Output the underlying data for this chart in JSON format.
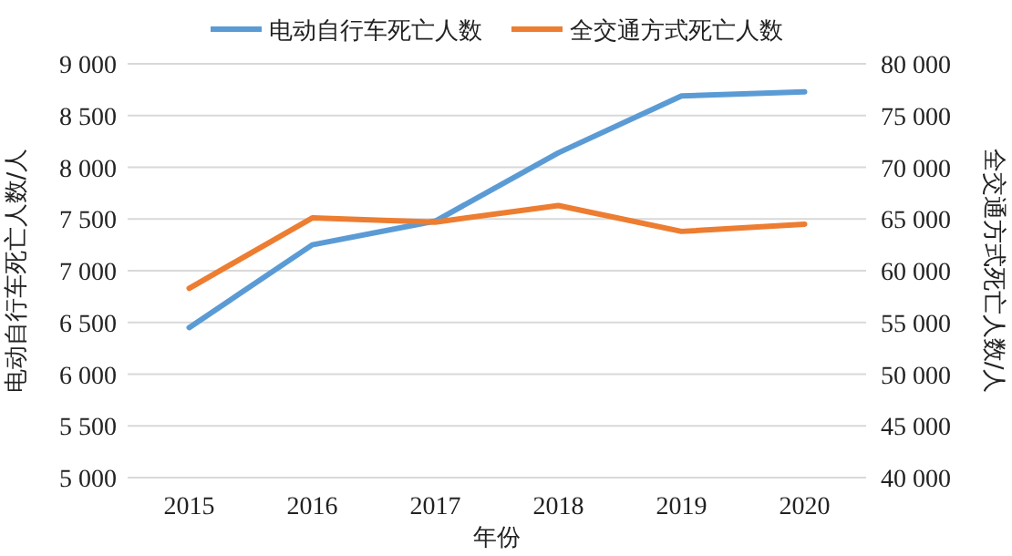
{
  "chart_data": {
    "type": "line",
    "categories": [
      "2015",
      "2016",
      "2017",
      "2018",
      "2019",
      "2020"
    ],
    "xlabel": "年份",
    "ylabel": "电动自行车死亡人数/人",
    "y2label": "全交通方式死亡人数/人",
    "series": [
      {
        "name": "电动自行车死亡人数",
        "color": "#5b9bd5",
        "values": [
          6450,
          7250,
          7480,
          8140,
          8690,
          8730
        ]
      },
      {
        "name": "全交通方式死亡人数",
        "color": "#ed7d31",
        "axis": "y2",
        "values": [
          58300,
          65100,
          64700,
          66300,
          63800,
          64500
        ]
      }
    ],
    "ylim": [
      5000,
      9000
    ],
    "yticks": [
      {
        "value": 5000,
        "label": "5 000"
      },
      {
        "value": 5500,
        "label": "5 500"
      },
      {
        "value": 6000,
        "label": "6 000"
      },
      {
        "value": 6500,
        "label": "6 500"
      },
      {
        "value": 7000,
        "label": "7 000"
      },
      {
        "value": 7500,
        "label": "7 500"
      },
      {
        "value": 8000,
        "label": "8 000"
      },
      {
        "value": 8500,
        "label": "8 500"
      },
      {
        "value": 9000,
        "label": "9 000"
      }
    ],
    "y2lim": [
      40000,
      80000
    ],
    "y2ticks": [
      {
        "value": 40000,
        "label": "40 000"
      },
      {
        "value": 45000,
        "label": "45 000"
      },
      {
        "value": 50000,
        "label": "50 000"
      },
      {
        "value": 55000,
        "label": "55 000"
      },
      {
        "value": 60000,
        "label": "60 000"
      },
      {
        "value": 65000,
        "label": "65 000"
      },
      {
        "value": 70000,
        "label": "70 000"
      },
      {
        "value": 75000,
        "label": "75 000"
      },
      {
        "value": 80000,
        "label": "80 000"
      }
    ],
    "grid": "y",
    "legend": "top",
    "marker": "none",
    "line_style": "solid"
  }
}
